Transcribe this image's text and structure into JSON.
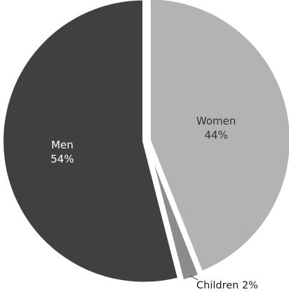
{
  "chart_data": {
    "type": "pie",
    "slices": [
      {
        "name": "Women",
        "percent_label": "44%",
        "value": 44,
        "color": "#b3b3b3"
      },
      {
        "name": "Children",
        "percent_label": "2%",
        "value": 2,
        "color": "#8c8c8c"
      },
      {
        "name": "Men",
        "percent_label": "54%",
        "value": 54,
        "color": "#404040"
      }
    ],
    "outside_label": "Children 2%"
  }
}
